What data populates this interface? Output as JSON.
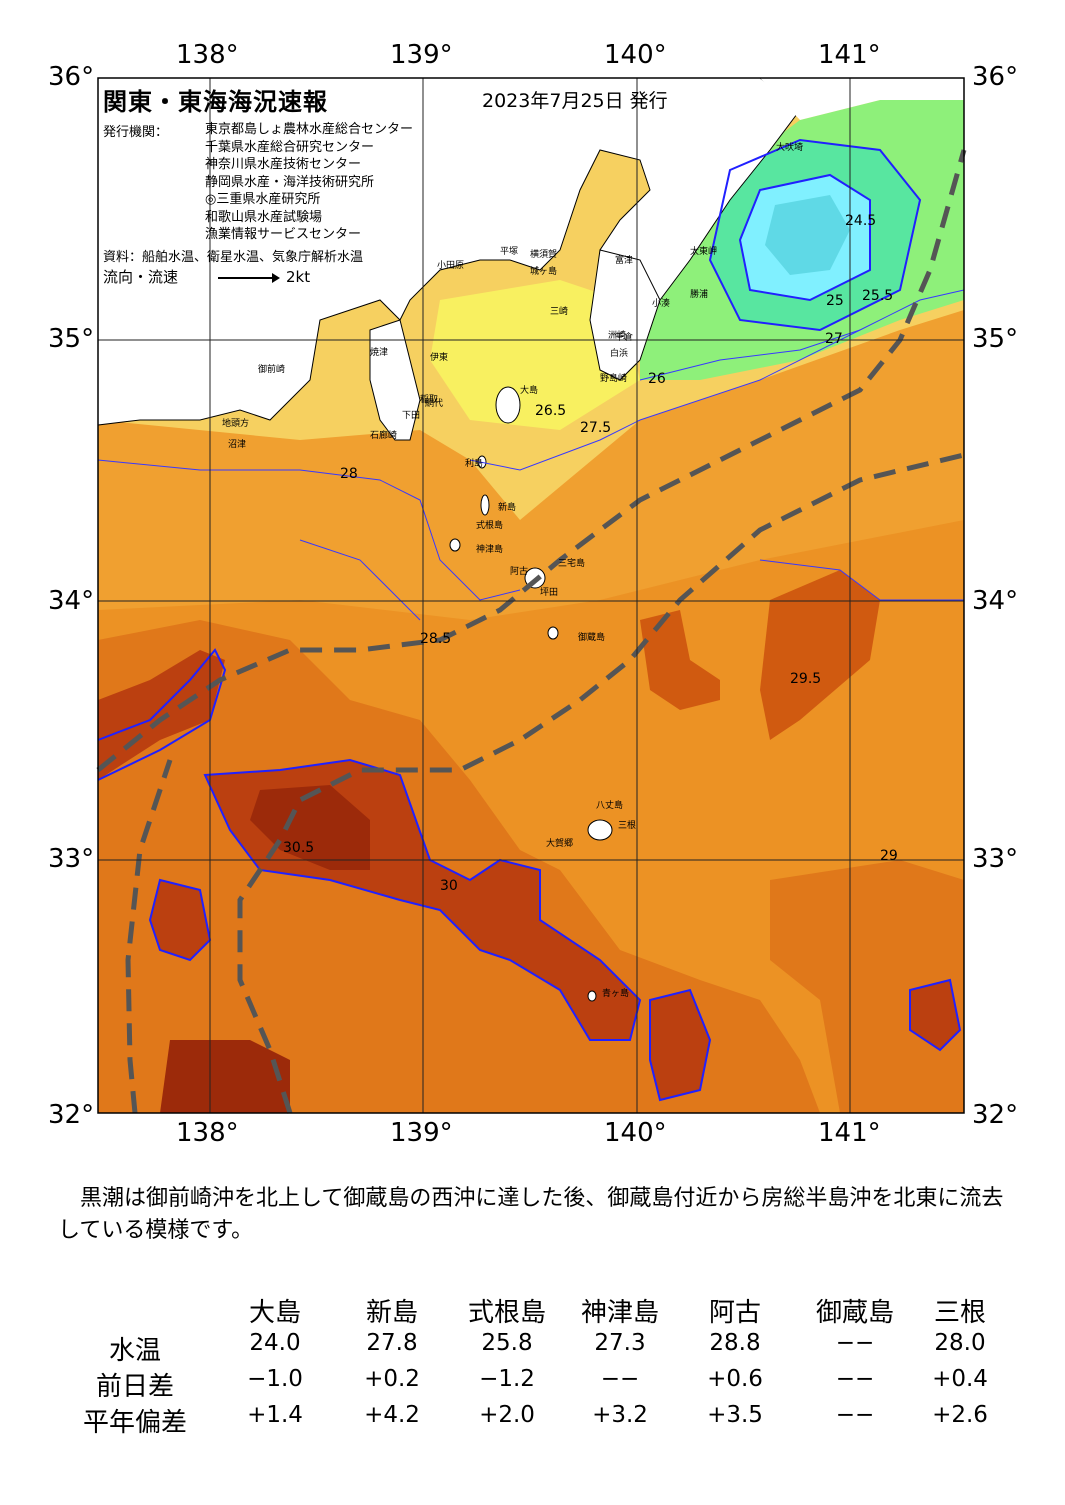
{
  "map": {
    "title": "関東・東海海況速報",
    "issue_date": "2023年7月25日 発行",
    "org_label": "発行機関：",
    "orgs": [
      "東京都島しょ農林水産総合センター",
      "千葉県水産総合研究センター",
      "神奈川県水産技術センター",
      "静岡県水産・海洋技術研究所",
      "◎三重県水産研究所",
      "和歌山県水産試験場",
      "漁業情報サービスセンター"
    ],
    "source": "資料：船舶水温、衛星水温、気象庁解析水温",
    "flow_label": "流向・流速",
    "flow_scale": "2kt",
    "lon_labels": [
      "138°",
      "139°",
      "140°",
      "141°"
    ],
    "lat_labels": [
      "36°",
      "35°",
      "34°",
      "33°",
      "32°"
    ],
    "places": [
      {
        "name": "大吠埼"
      },
      {
        "name": "太東岬"
      },
      {
        "name": "勝浦"
      },
      {
        "name": "小湊"
      },
      {
        "name": "洲崎"
      },
      {
        "name": "白浜"
      },
      {
        "name": "千倉"
      },
      {
        "name": "野島崎"
      },
      {
        "name": "富津"
      },
      {
        "name": "平塚"
      },
      {
        "name": "横須賀"
      },
      {
        "name": "城ヶ島"
      },
      {
        "name": "三崎"
      },
      {
        "name": "小田原"
      },
      {
        "name": "網代"
      },
      {
        "name": "伊東"
      },
      {
        "name": "稲取"
      },
      {
        "name": "下田"
      },
      {
        "name": "石廊崎"
      },
      {
        "name": "大島"
      },
      {
        "name": "利島"
      },
      {
        "name": "新島"
      },
      {
        "name": "式根島"
      },
      {
        "name": "神津島"
      },
      {
        "name": "三宅島"
      },
      {
        "name": "阿古"
      },
      {
        "name": "坪田"
      },
      {
        "name": "御蔵島"
      },
      {
        "name": "八丈島"
      },
      {
        "name": "三根"
      },
      {
        "name": "大賀郷"
      },
      {
        "name": "青ヶ島"
      },
      {
        "name": "焼津"
      },
      {
        "name": "御前崎"
      },
      {
        "name": "沼津"
      },
      {
        "name": "地頭方"
      }
    ],
    "contour_labels": [
      "24.5",
      "25",
      "25.5",
      "26",
      "26.5",
      "27",
      "27.5",
      "28",
      "28.5",
      "29",
      "29.5",
      "30",
      "30.5"
    ],
    "colors": {
      "t_lt24": "#5fd9e6",
      "t_24": "#80f0ff",
      "t_25": "#58e6a0",
      "t_26": "#8ef07a",
      "t_27": "#f8f060",
      "t_275": "#f6d060",
      "t_28": "#f0a030",
      "t_285": "#ec9224",
      "t_29": "#e0781a",
      "t_295": "#d05a10",
      "t_30": "#bb4010",
      "t_305": "#9c2a0a",
      "land": "#ffffff",
      "contour": "#2020ff",
      "kuroshio": "#555555"
    }
  },
  "summary": "黒潮は御前崎沖を北上して御蔵島の西沖に達した後、御蔵島付近から房総半島沖を北東に流去している模様です。",
  "stations": {
    "headers": [
      "大島",
      "新島",
      "式根島",
      "神津島",
      "阿古",
      "御蔵島",
      "三根"
    ],
    "rows": [
      {
        "label": "水温",
        "values": [
          "24.0",
          "27.8",
          "25.8",
          "27.3",
          "28.8",
          "−−",
          "28.0"
        ]
      },
      {
        "label": "前日差",
        "values": [
          "−1.0",
          "+0.2",
          "−1.2",
          "−−",
          "+0.6",
          "−−",
          "+0.4"
        ]
      },
      {
        "label": "平年偏差",
        "values": [
          "+1.4",
          "+4.2",
          "+2.0",
          "+3.2",
          "+3.5",
          "−−",
          "+2.6"
        ]
      }
    ]
  }
}
